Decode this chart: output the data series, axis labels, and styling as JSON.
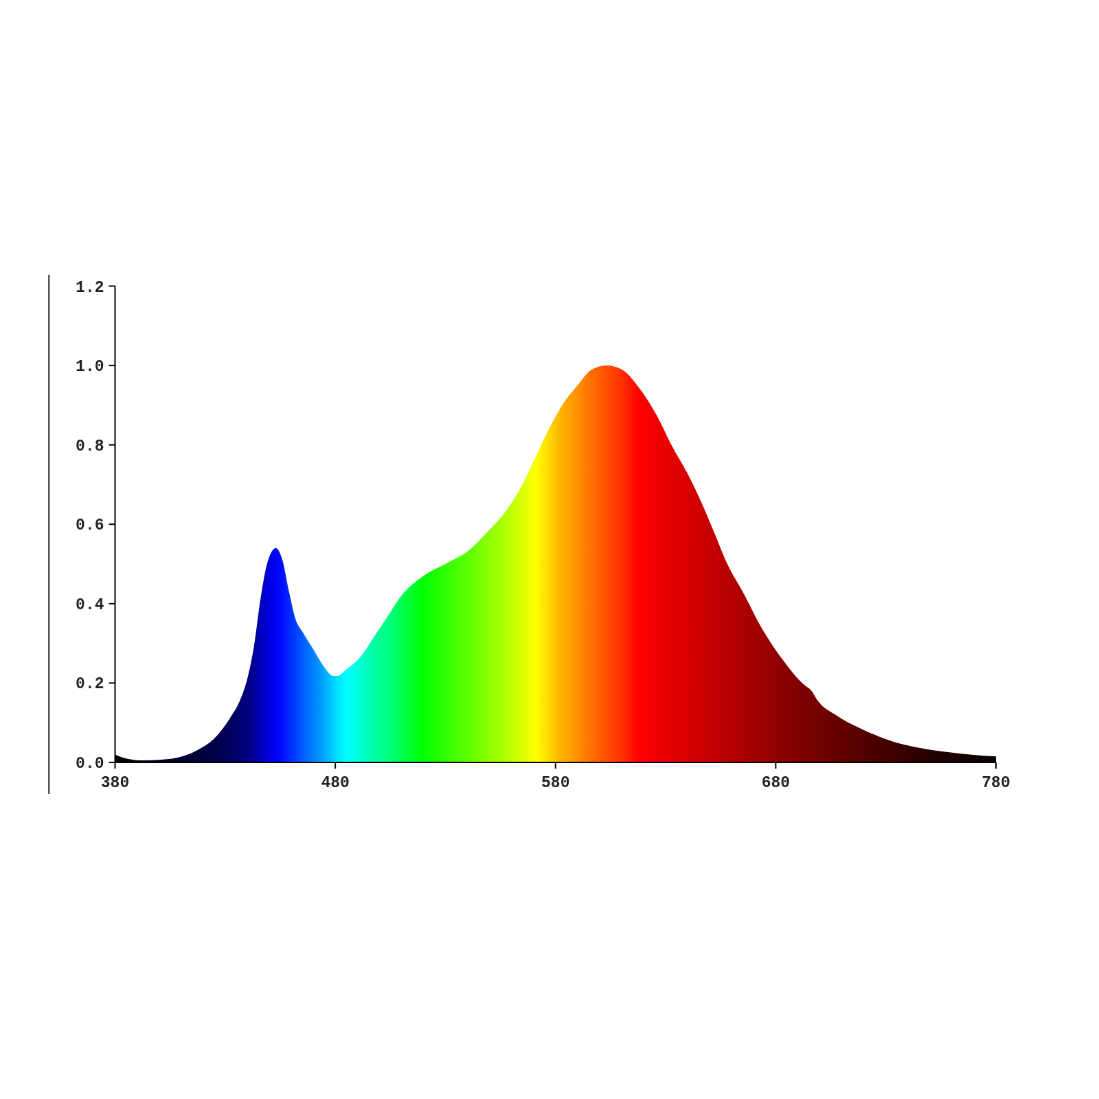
{
  "chart_data": {
    "type": "area",
    "x": [
      380,
      385,
      393,
      401,
      409,
      417,
      425,
      432,
      437,
      440,
      443,
      446,
      449,
      453,
      456,
      459,
      462,
      465,
      470,
      475,
      479,
      481,
      485,
      492,
      498,
      504,
      510,
      520,
      530,
      541,
      549,
      557,
      565,
      571,
      577,
      583,
      590,
      596,
      603,
      610,
      618,
      626,
      633,
      640,
      646,
      652,
      658,
      665,
      674,
      683,
      693,
      696,
      699,
      708,
      718,
      727,
      736,
      746,
      755,
      764,
      774,
      780
    ],
    "series": [
      {
        "values": [
          0.02,
          0.01,
          0.005,
          0.007,
          0.013,
          0.03,
          0.06,
          0.11,
          0.16,
          0.21,
          0.29,
          0.41,
          0.5,
          0.54,
          0.51,
          0.43,
          0.36,
          0.33,
          0.285,
          0.24,
          0.218,
          0.218,
          0.234,
          0.27,
          0.32,
          0.37,
          0.42,
          0.47,
          0.5,
          0.536,
          0.58,
          0.63,
          0.7,
          0.77,
          0.84,
          0.9,
          0.95,
          0.988,
          1.0,
          0.99,
          0.943,
          0.874,
          0.796,
          0.727,
          0.658,
          0.58,
          0.5,
          0.43,
          0.335,
          0.26,
          0.195,
          0.182,
          0.156,
          0.117,
          0.087,
          0.065,
          0.048,
          0.036,
          0.028,
          0.022,
          0.017,
          0.015
        ],
        "colors": [
          "#000000",
          "#000008",
          "#000014",
          "#000020",
          "#00002c",
          "#000038",
          "#000048",
          "#00005c",
          "#000070",
          "#000080",
          "#000098",
          "#0000b8",
          "#0000d8",
          "#0000f8",
          "#0010ff",
          "#0028ff",
          "#0040ff",
          "#0058ff",
          "#0080ff",
          "#00a8ff",
          "#00d0ff",
          "#00e0ff",
          "#00ffff",
          "#00ffd0",
          "#00ffa0",
          "#00ff80",
          "#00ff50",
          "#00ff00",
          "#30ff00",
          "#60ff00",
          "#88ff00",
          "#b0ff00",
          "#d8ff00",
          "#ffff00",
          "#ffd800",
          "#ffb000",
          "#ff9000",
          "#ff7000",
          "#ff5000",
          "#ff3000",
          "#ff0000",
          "#f00000",
          "#e40000",
          "#d80000",
          "#cc0000",
          "#c20000",
          "#b80000",
          "#ac0000",
          "#9c0000",
          "#8c0000",
          "#7c0000",
          "#780000",
          "#740000",
          "#660000",
          "#560000",
          "#480000",
          "#3a0000",
          "#2c0000",
          "#200000",
          "#160000",
          "#0a0000",
          "#000000"
        ]
      }
    ],
    "xlim": [
      380,
      780
    ],
    "xticks": [
      380,
      480,
      580,
      680,
      780
    ],
    "ylim": [
      0,
      1.2
    ],
    "yticks": [
      {
        "value": 0,
        "label": "0.0"
      },
      {
        "value": 0.2,
        "label": "0.2"
      },
      {
        "value": 0.4,
        "label": "0.4"
      },
      {
        "value": 0.6,
        "label": "0.6"
      },
      {
        "value": 0.8,
        "label": "0.8"
      },
      {
        "value": 1,
        "label": "1.0"
      },
      {
        "value": 1.2,
        "label": "1.2"
      }
    ]
  }
}
